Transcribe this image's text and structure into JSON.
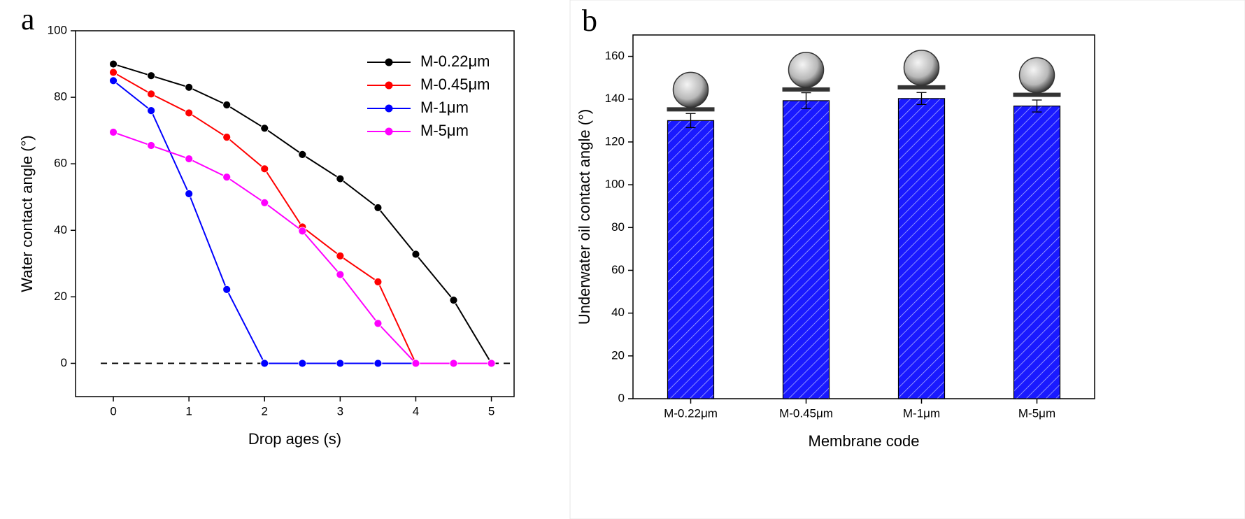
{
  "chart_data": [
    {
      "type": "line",
      "panel": "a",
      "x_label": "Drop ages (s)",
      "y_label": "Water contact angle (°)",
      "x": [
        0,
        0.5,
        1,
        1.5,
        2,
        2.5,
        3,
        3.5,
        4,
        4.5,
        5
      ],
      "series": [
        {
          "name": "M-0.22μm",
          "color": "#000000",
          "values": [
            90,
            86.5,
            83,
            77.7,
            70.7,
            62.8,
            55.5,
            46.8,
            32.8,
            19,
            0
          ]
        },
        {
          "name": "M-0.45μm",
          "color": "#ff0000",
          "values": [
            87.5,
            81,
            75.3,
            68,
            58.5,
            41,
            32.3,
            24.5,
            0,
            0,
            0
          ]
        },
        {
          "name": "M-1μm",
          "color": "#0000ff",
          "values": [
            85,
            76,
            51,
            22.2,
            0,
            0,
            0,
            0,
            0,
            0,
            0
          ]
        },
        {
          "name": "M-5μm",
          "color": "#ff00ff",
          "values": [
            69.5,
            65.5,
            61.5,
            56,
            48.3,
            39.8,
            26.7,
            12,
            0,
            0,
            0
          ]
        }
      ],
      "xlim": [
        -0.5,
        5.3
      ],
      "xticks": [
        0,
        1,
        2,
        3,
        4,
        5
      ],
      "ylim": [
        -10,
        100
      ],
      "yticks": [
        0,
        20,
        40,
        60,
        80,
        100
      ],
      "hline": 0,
      "legend": "upper right"
    },
    {
      "type": "bar",
      "panel": "b",
      "x_label": "Membrane code",
      "y_label": "Underwater oil contact angle (°)",
      "categories": [
        "M-0.22μm",
        "M-0.45μm",
        "M-1μm",
        "M-5μm"
      ],
      "values": [
        130,
        139.3,
        140.3,
        136.8
      ],
      "errors": [
        3.3,
        3.7,
        2.8,
        2.8
      ],
      "color": "#1a1aff",
      "ylim": [
        0,
        170
      ],
      "yticks": [
        0,
        20,
        40,
        60,
        80,
        100,
        120,
        140,
        160
      ]
    }
  ]
}
